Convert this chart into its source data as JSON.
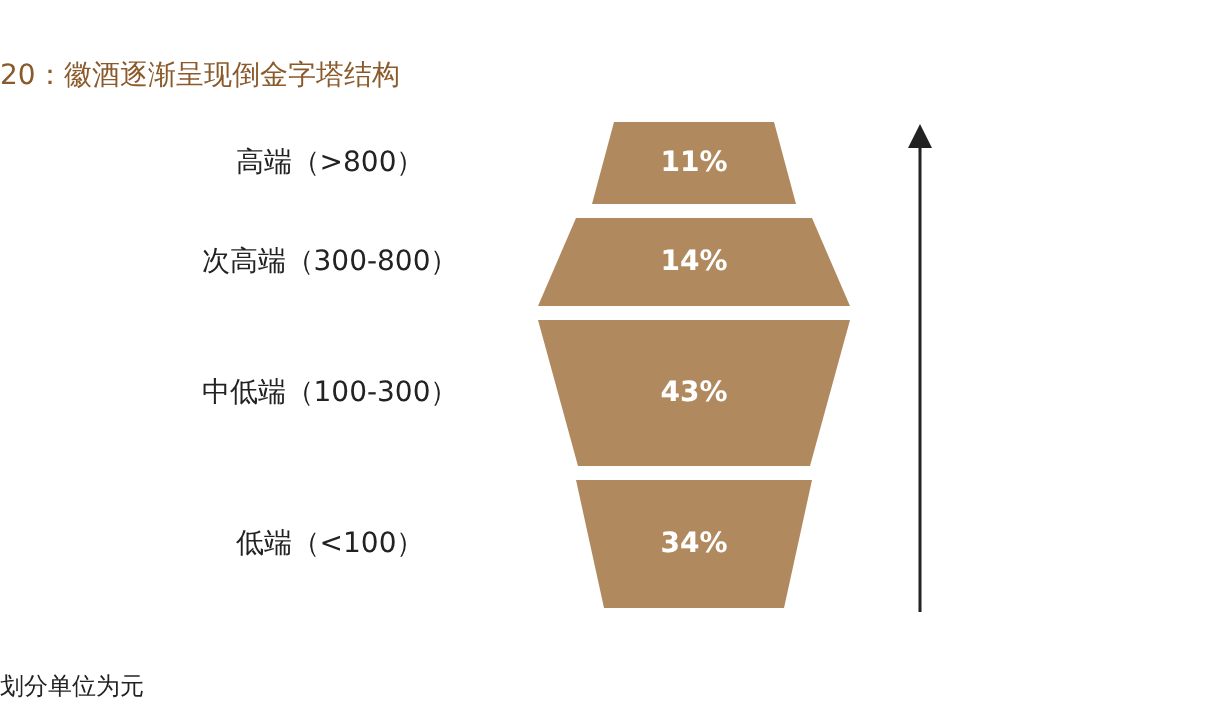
{
  "chart_data": {
    "type": "other",
    "title": "20：徽酒逐渐呈现倒金字塔结构",
    "categories": [
      "高端（>800）",
      "次高端（300-800）",
      "中低端（100-300）",
      "低端（<100）"
    ],
    "values": [
      11,
      14,
      43,
      34
    ],
    "value_labels": [
      "11%",
      "14%",
      "43%",
      "34%"
    ],
    "colors": [
      "#b08a5e",
      "#b08a5e",
      "#b08a5e",
      "#b08a5e"
    ],
    "annotations": [
      "划分单位为元"
    ]
  }
}
